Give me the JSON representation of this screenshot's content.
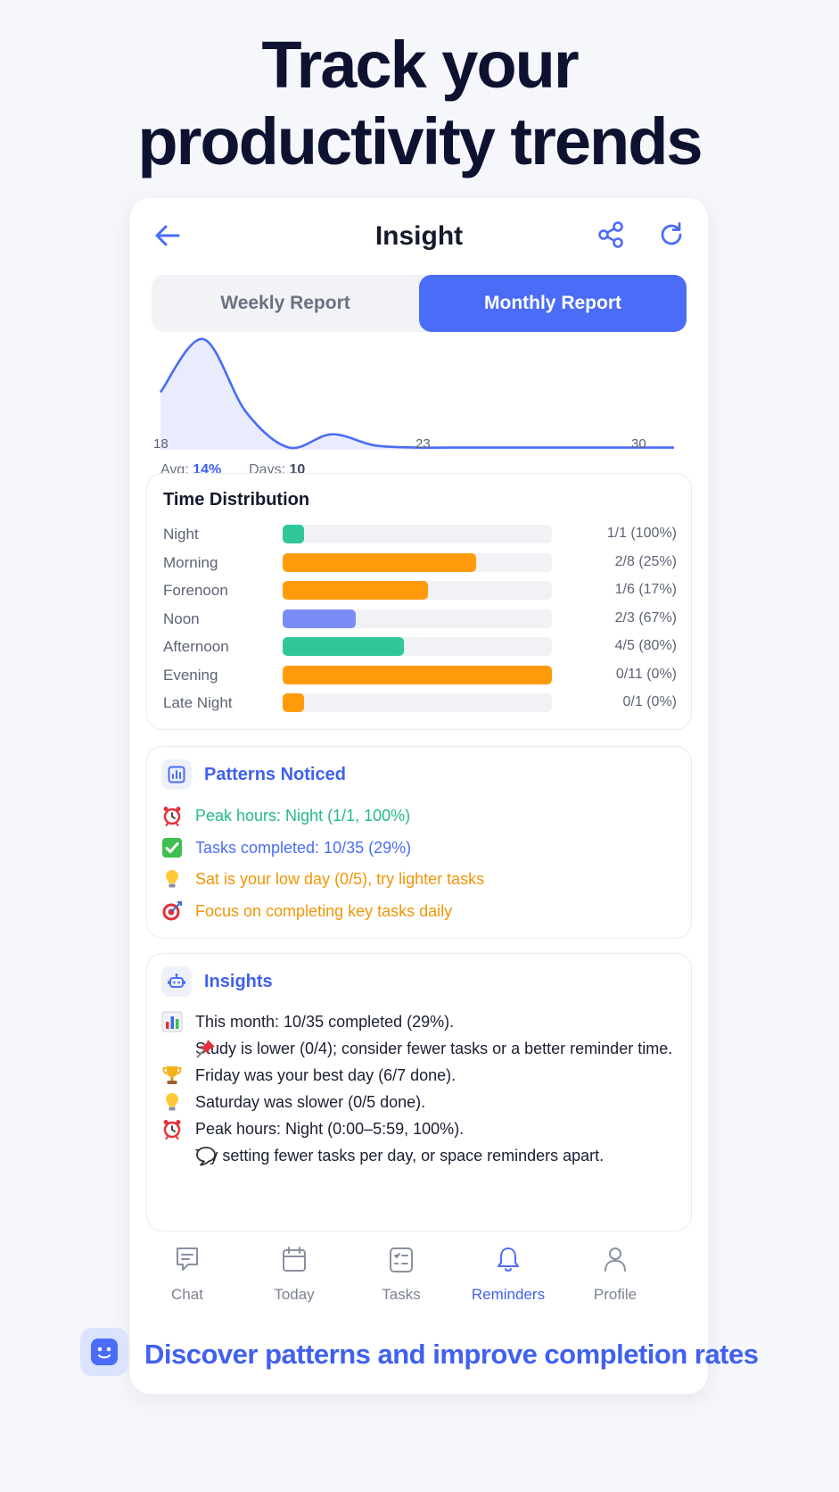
{
  "headline": {
    "line1": "Track your",
    "line2": "productivity trends"
  },
  "header": {
    "title": "Insight",
    "back_icon": "arrow-left-icon",
    "share_icon": "share-icon",
    "refresh_icon": "refresh-icon"
  },
  "segments": {
    "weekly_label": "Weekly Report",
    "monthly_label": "Monthly Report",
    "selected": "Monthly Report"
  },
  "chart_data": {
    "type": "area",
    "x_ticks": [
      "18",
      "23",
      "30"
    ],
    "y": [
      52,
      100,
      34,
      2,
      14,
      4,
      2,
      2,
      2,
      2,
      2,
      2,
      2
    ],
    "accent": "#4a6cf7"
  },
  "stats": {
    "avg_label": "Avg:",
    "avg_value": "14%",
    "days_label": "Days:",
    "days_value": "10"
  },
  "time_distribution": {
    "title": "Time Distribution",
    "rows": [
      {
        "label": "Night",
        "fill": 0.08,
        "color": "#2fc79a",
        "value": "1/1 (100%)"
      },
      {
        "label": "Morning",
        "fill": 0.72,
        "color": "#ff9b0a",
        "value": "2/8 (25%)"
      },
      {
        "label": "Forenoon",
        "fill": 0.54,
        "color": "#ff9b0a",
        "value": "1/6 (17%)"
      },
      {
        "label": "Noon",
        "fill": 0.27,
        "color": "#7b8cf6",
        "value": "2/3 (67%)"
      },
      {
        "label": "Afternoon",
        "fill": 0.45,
        "color": "#2fc79a",
        "value": "4/5 (80%)"
      },
      {
        "label": "Evening",
        "fill": 1.0,
        "color": "#ff9b0a",
        "value": "0/11 (0%)"
      },
      {
        "label": "Late Night",
        "fill": 0.08,
        "color": "#ff9b0a",
        "value": "0/1 (0%)"
      }
    ]
  },
  "patterns": {
    "title": "Patterns Noticed",
    "items": [
      {
        "icon": "alarm-clock-icon",
        "text": "Peak hours: Night (1/1, 100%)",
        "color": "#25b98a"
      },
      {
        "icon": "check-mark-icon",
        "text": "Tasks completed: 10/35 (29%)",
        "color": "#4a6cf7"
      },
      {
        "icon": "light-bulb-icon",
        "text": "Sat is your low day (0/5), try lighter tasks",
        "color": "#f39508"
      },
      {
        "icon": "target-icon",
        "text": "Focus on completing key tasks daily",
        "color": "#f39508"
      }
    ]
  },
  "insights": {
    "title": "Insights",
    "items": [
      {
        "icon": "bar-chart-icon",
        "text": "This month: 10/35 completed (29%)."
      },
      {
        "icon": "pushpin-icon",
        "text": "Study is lower (0/4); consider fewer tasks or a better reminder time."
      },
      {
        "icon": "trophy-icon",
        "text": "Friday was your best day (6/7 done)."
      },
      {
        "icon": "light-bulb-icon",
        "text": "Saturday was slower (0/5 done)."
      },
      {
        "icon": "alarm-clock-icon",
        "text": "Peak hours: Night (0:00–5:59, 100%)."
      },
      {
        "icon": "speech-bubble-icon",
        "text": "Try setting fewer tasks per day, or space reminders apart."
      }
    ]
  },
  "tabbar": {
    "items": [
      {
        "label": "Chat",
        "icon": "chat-icon"
      },
      {
        "label": "Today",
        "icon": "calendar-icon"
      },
      {
        "label": "Tasks",
        "icon": "checklist-icon"
      },
      {
        "label": "Reminders",
        "icon": "bell-icon",
        "active": true
      },
      {
        "label": "Profile",
        "icon": "user-icon"
      }
    ]
  },
  "footer": {
    "text": "Discover patterns and improve completion rates",
    "icon": "robot-face-icon"
  }
}
